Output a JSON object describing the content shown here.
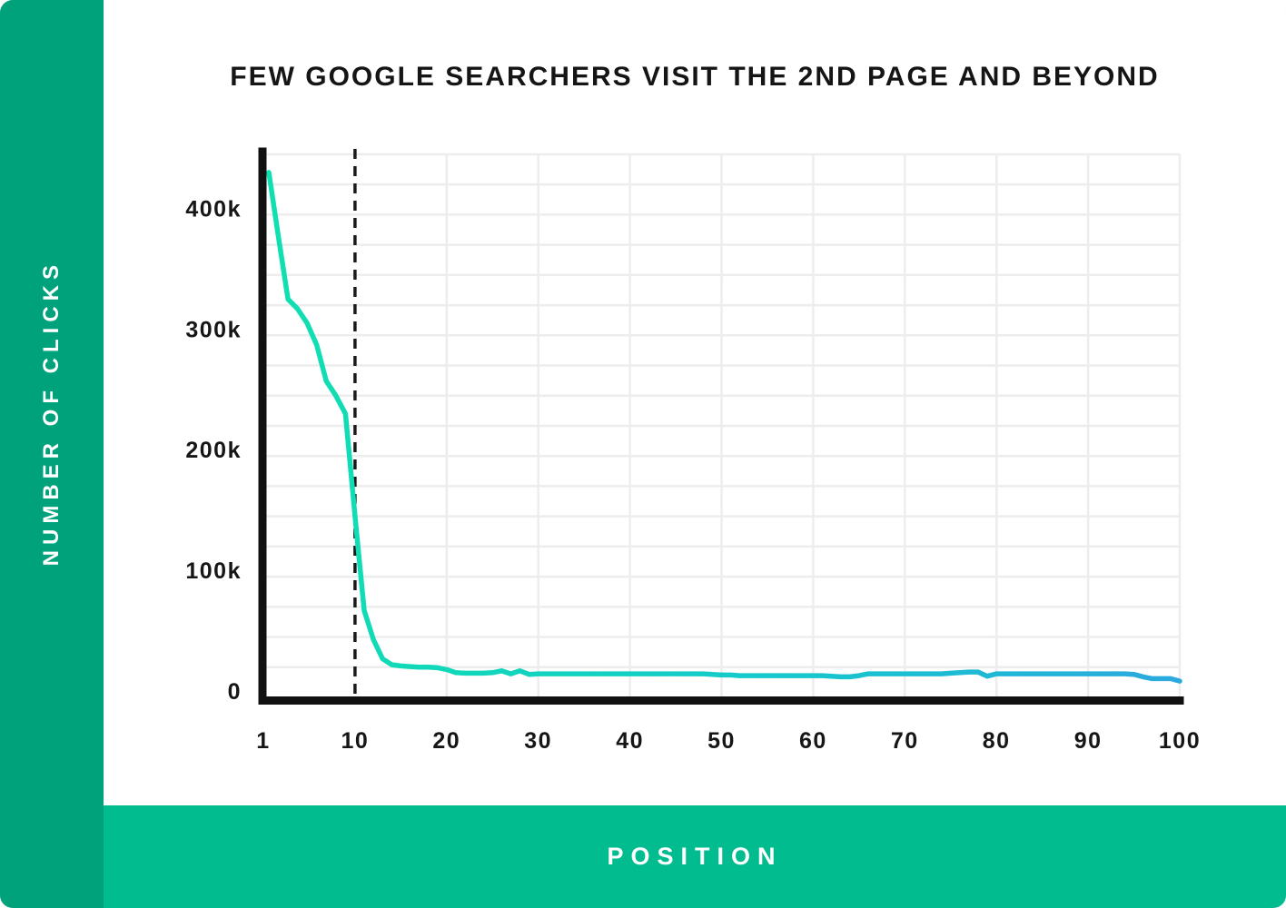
{
  "title": "FEW GOOGLE SEARCHERS VISIT THE 2ND PAGE AND BEYOND",
  "y_axis_label": "NUMBER OF CLICKS",
  "x_axis_label": "POSITION",
  "colors": {
    "sidebar_green": "#00A27C",
    "bottom_bar_green": "#00BC8E",
    "card_background": "#FFFFFF",
    "grid": "#EDEDED",
    "axis": "#111111",
    "dashed_line": "#1A1A1A",
    "tick_text": "#161616",
    "title_text": "#151515",
    "line_gradient_start": "#0FE0B0",
    "line_gradient_mid": "#15C9CC",
    "line_gradient_end": "#2BA9DE"
  },
  "chart_data": {
    "type": "line",
    "title": "FEW GOOGLE SEARCHERS VISIT THE 2ND PAGE AND BEYOND",
    "xlabel": "POSITION",
    "ylabel": "NUMBER OF CLICKS",
    "legend": "none",
    "grid": "on",
    "grid_step_y": 25000,
    "ylim": [
      0,
      450000
    ],
    "xlim": [
      1,
      100
    ],
    "dashed_vline_position": 10,
    "y_ticks": [
      {
        "label": "0",
        "value": 0
      },
      {
        "label": "100k",
        "value": 100000
      },
      {
        "label": "200k",
        "value": 200000
      },
      {
        "label": "300k",
        "value": 300000
      },
      {
        "label": "400k",
        "value": 400000
      }
    ],
    "x_ticks": [
      {
        "label": "1",
        "pos": 1
      },
      {
        "label": "10",
        "pos": 10
      },
      {
        "label": "20",
        "pos": 20
      },
      {
        "label": "30",
        "pos": 30
      },
      {
        "label": "40",
        "pos": 40
      },
      {
        "label": "50",
        "pos": 50
      },
      {
        "label": "60",
        "pos": 60
      },
      {
        "label": "70",
        "pos": 70
      },
      {
        "label": "80",
        "pos": 80
      },
      {
        "label": "90",
        "pos": 90
      },
      {
        "label": "100",
        "pos": 100
      }
    ],
    "series": [
      {
        "name": "clicks",
        "x_start": 1,
        "values": [
          435000,
          382000,
          330000,
          322000,
          310000,
          292000,
          262000,
          250000,
          235000,
          150000,
          72000,
          48000,
          32000,
          27000,
          26000,
          25500,
          25000,
          25000,
          24500,
          23000,
          20500,
          20000,
          20000,
          20000,
          20500,
          22000,
          19500,
          22000,
          19000,
          19500,
          19500,
          19500,
          19500,
          19500,
          19500,
          19500,
          19500,
          19500,
          19500,
          19500,
          19500,
          19500,
          19500,
          19500,
          19500,
          19500,
          19500,
          19500,
          19000,
          18500,
          18500,
          18000,
          18000,
          18000,
          18000,
          18000,
          18000,
          18000,
          18000,
          18000,
          18000,
          17500,
          17000,
          17000,
          18000,
          19500,
          19500,
          19500,
          19500,
          19500,
          19500,
          19500,
          19500,
          19500,
          20000,
          20500,
          21000,
          21000,
          17500,
          19500,
          19500,
          19500,
          19500,
          19500,
          19500,
          19500,
          19500,
          19500,
          19500,
          19500,
          19500,
          19500,
          19500,
          19500,
          19000,
          17000,
          15500,
          15500,
          15500,
          13500
        ]
      }
    ]
  }
}
